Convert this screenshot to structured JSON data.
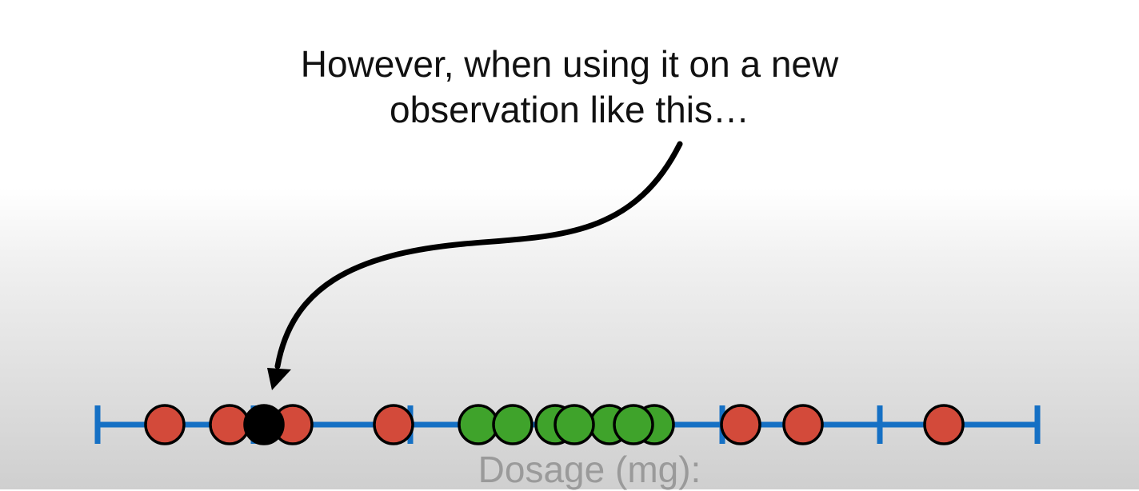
{
  "caption": {
    "line1": "However, when using it on a new",
    "line2": "observation like this…"
  },
  "axis": {
    "label": "Dosage (mg):",
    "line_color": "#1570c4",
    "ticks": 6
  },
  "colors": {
    "red_point": "#d34a3a",
    "green_point": "#3fa32b",
    "new_observation": "#000000",
    "arrow": "#000000"
  },
  "observations": {
    "red": [
      1,
      2,
      3,
      4,
      5,
      6,
      7
    ],
    "green": [
      1,
      2,
      3,
      4,
      5,
      6,
      7
    ],
    "new": 1
  }
}
